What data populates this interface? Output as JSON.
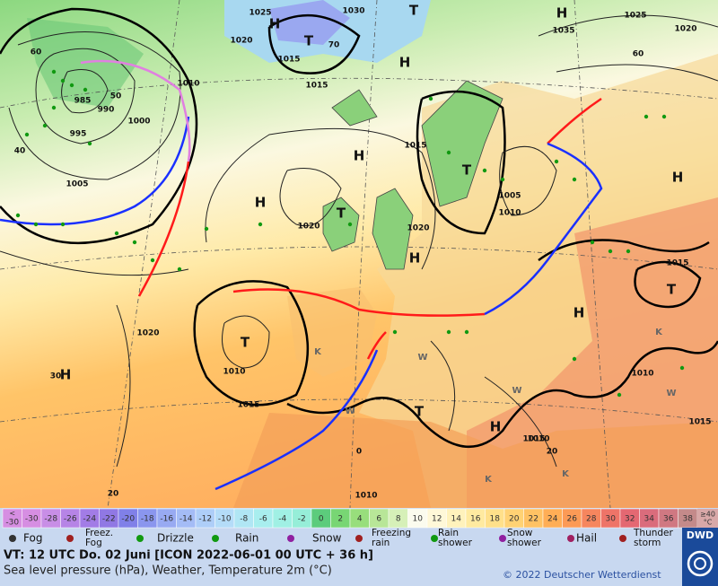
{
  "map": {
    "labels": [
      "1025",
      "H",
      "1030",
      "T",
      "H",
      "1035",
      "1025",
      "1020",
      "1020",
      "1015",
      "T",
      "1015",
      "H",
      "985",
      "990",
      "50",
      "995",
      "1000",
      "1010",
      "60",
      "40",
      "1005",
      "H",
      "H",
      "1020",
      "T",
      "1020",
      "H",
      "1015",
      "T",
      "1005",
      "1010",
      "H",
      "1015",
      "T",
      "H",
      "T",
      "1010",
      "1020",
      "1015",
      "30",
      "H",
      "1010",
      "1015",
      "H",
      "T",
      "1010",
      "1015",
      "20",
      "20",
      "0",
      "1010",
      "W",
      "K",
      "K",
      "W",
      "W",
      "W",
      "K",
      "K",
      "60",
      "70"
    ],
    "types": [
      "n",
      "H",
      "n",
      "T",
      "H",
      "n",
      "n",
      "n",
      "n",
      "n",
      "T",
      "n",
      "H",
      "n",
      "n",
      "n",
      "n",
      "n",
      "n",
      "n",
      "n",
      "n",
      "H",
      "H",
      "n",
      "T",
      "n",
      "H",
      "n",
      "T",
      "n",
      "n",
      "H",
      "n",
      "T",
      "H",
      "T",
      "n",
      "n",
      "n",
      "n",
      "H",
      "n",
      "n",
      "H",
      "T",
      "n",
      "n",
      "n",
      "n",
      "n",
      "n",
      "s",
      "s",
      "s",
      "s",
      "s",
      "s",
      "s",
      "s",
      "n",
      "n"
    ]
  },
  "scale": {
    "items": [
      {
        "label": "-30",
        "color": "#d68ee2"
      },
      {
        "label": "-28",
        "color": "#c88ee6"
      },
      {
        "label": "-26",
        "color": "#b684e6"
      },
      {
        "label": "-24",
        "color": "#a27ce6"
      },
      {
        "label": "-22",
        "color": "#9078e4"
      },
      {
        "label": "-20",
        "color": "#8080e8"
      },
      {
        "label": "-18",
        "color": "#8a96ee"
      },
      {
        "label": "-16",
        "color": "#98aaf2"
      },
      {
        "label": "-14",
        "color": "#a4bcf6"
      },
      {
        "label": "-12",
        "color": "#aecef8"
      },
      {
        "label": "-10",
        "color": "#b4dcf8"
      },
      {
        "label": "-8",
        "color": "#b0e6f4"
      },
      {
        "label": "-6",
        "color": "#a8eeee"
      },
      {
        "label": "-4",
        "color": "#a0f0e4"
      },
      {
        "label": "-2",
        "color": "#96eed8"
      },
      {
        "label": "0",
        "color": "#5ccc7c"
      },
      {
        "label": "2",
        "color": "#78d674"
      },
      {
        "label": "4",
        "color": "#98de7c"
      },
      {
        "label": "6",
        "color": "#b8e698"
      },
      {
        "label": "8",
        "color": "#d6f0b8"
      },
      {
        "label": "10",
        "color": "#fbfbee"
      },
      {
        "label": "12",
        "color": "#fff8d8"
      },
      {
        "label": "14",
        "color": "#fff2bc"
      },
      {
        "label": "16",
        "color": "#ffeaa0"
      },
      {
        "label": "18",
        "color": "#ffe08a"
      },
      {
        "label": "20",
        "color": "#ffd274"
      },
      {
        "label": "22",
        "color": "#ffc264"
      },
      {
        "label": "24",
        "color": "#ffae56"
      },
      {
        "label": "26",
        "color": "#fc9a56"
      },
      {
        "label": "28",
        "color": "#f6865e"
      },
      {
        "label": "30",
        "color": "#ee7468"
      },
      {
        "label": "32",
        "color": "#e46872"
      },
      {
        "label": "34",
        "color": "#da6c7c"
      },
      {
        "label": "36",
        "color": "#d07882"
      },
      {
        "label": "38",
        "color": "#c48a8a"
      }
    ],
    "low": "<",
    "high": "≥40",
    "unit": "°C"
  },
  "weather_legend": [
    [
      "Fog"
    ],
    [
      "Freez.",
      "Fog"
    ],
    [
      "Drizzle"
    ],
    [
      "Rain"
    ],
    [
      "Snow"
    ],
    [
      "Freezing",
      "rain"
    ],
    [
      "Rain",
      "shower"
    ],
    [
      "Snow",
      "shower"
    ],
    [
      "Hail"
    ],
    [
      "Thunder",
      "storm"
    ]
  ],
  "footer": {
    "line1": "VT: 12 UTC Do.  02 Juni [ICON 2022-06-01  00 UTC + 36 h]",
    "line2": "Sea level pressure (hPa), Weather, Temperature 2m (°C)",
    "copyright": "© 2022 Deutscher Wetterdienst",
    "logo": "DWD"
  }
}
